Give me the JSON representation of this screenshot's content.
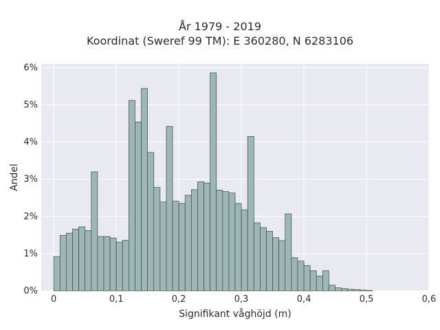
{
  "chart_data": {
    "type": "bar",
    "title": "År 1979 - 2019",
    "subtitle": "Koordinat (Sweref 99 TM): E 360280, N 6283106",
    "xlabel": "Signifikant våghöjd (m)",
    "ylabel": "Andel",
    "xlim": [
      -0.02,
      0.6
    ],
    "ylim": [
      0,
      6.1
    ],
    "x_ticks": [
      {
        "value": 0,
        "label": "0"
      },
      {
        "value": 0.1,
        "label": "0,1"
      },
      {
        "value": 0.2,
        "label": "0,2"
      },
      {
        "value": 0.3,
        "label": "0,3"
      },
      {
        "value": 0.4,
        "label": "0,4"
      },
      {
        "value": 0.5,
        "label": "0,5"
      },
      {
        "value": 0.6,
        "label": "0,6"
      }
    ],
    "y_ticks": [
      {
        "value": 0,
        "label": "0%"
      },
      {
        "value": 1,
        "label": "1%"
      },
      {
        "value": 2,
        "label": "2%"
      },
      {
        "value": 3,
        "label": "3%"
      },
      {
        "value": 4,
        "label": "4%"
      },
      {
        "value": 5,
        "label": "5%"
      },
      {
        "value": 6,
        "label": "6%"
      }
    ],
    "bin_width": 0.01,
    "bin_starts": [
      0.0,
      0.01,
      0.02,
      0.03,
      0.04,
      0.05,
      0.06,
      0.07,
      0.08,
      0.09,
      0.1,
      0.11,
      0.12,
      0.13,
      0.14,
      0.15,
      0.16,
      0.17,
      0.18,
      0.19,
      0.2,
      0.21,
      0.22,
      0.23,
      0.24,
      0.25,
      0.26,
      0.27,
      0.28,
      0.29,
      0.3,
      0.31,
      0.32,
      0.33,
      0.34,
      0.35,
      0.36,
      0.37,
      0.38,
      0.39,
      0.4,
      0.41,
      0.42,
      0.43,
      0.44,
      0.45,
      0.46,
      0.47,
      0.48,
      0.49,
      0.5,
      0.51,
      0.52,
      0.53,
      0.54,
      0.55,
      0.56
    ],
    "values": [
      0.92,
      1.49,
      1.55,
      1.66,
      1.72,
      1.62,
      3.2,
      1.46,
      1.46,
      1.42,
      1.31,
      1.36,
      5.12,
      4.54,
      5.44,
      3.72,
      2.78,
      2.39,
      4.42,
      2.41,
      2.35,
      2.57,
      2.72,
      2.93,
      2.9,
      5.86,
      2.71,
      2.67,
      2.63,
      2.35,
      2.18,
      4.15,
      1.83,
      1.7,
      1.6,
      1.43,
      1.35,
      2.07,
      0.89,
      0.8,
      0.68,
      0.54,
      0.4,
      0.54,
      0.15,
      0.08,
      0.06,
      0.04,
      0.03,
      0.02,
      0.01,
      0,
      0,
      0,
      0,
      0,
      0
    ],
    "grid": true,
    "colors": {
      "bar_fill": "#9eb6b4",
      "bar_stroke": "#3a4a49",
      "plot_bg": "#e9e9f1",
      "grid": "#ffffff"
    }
  }
}
